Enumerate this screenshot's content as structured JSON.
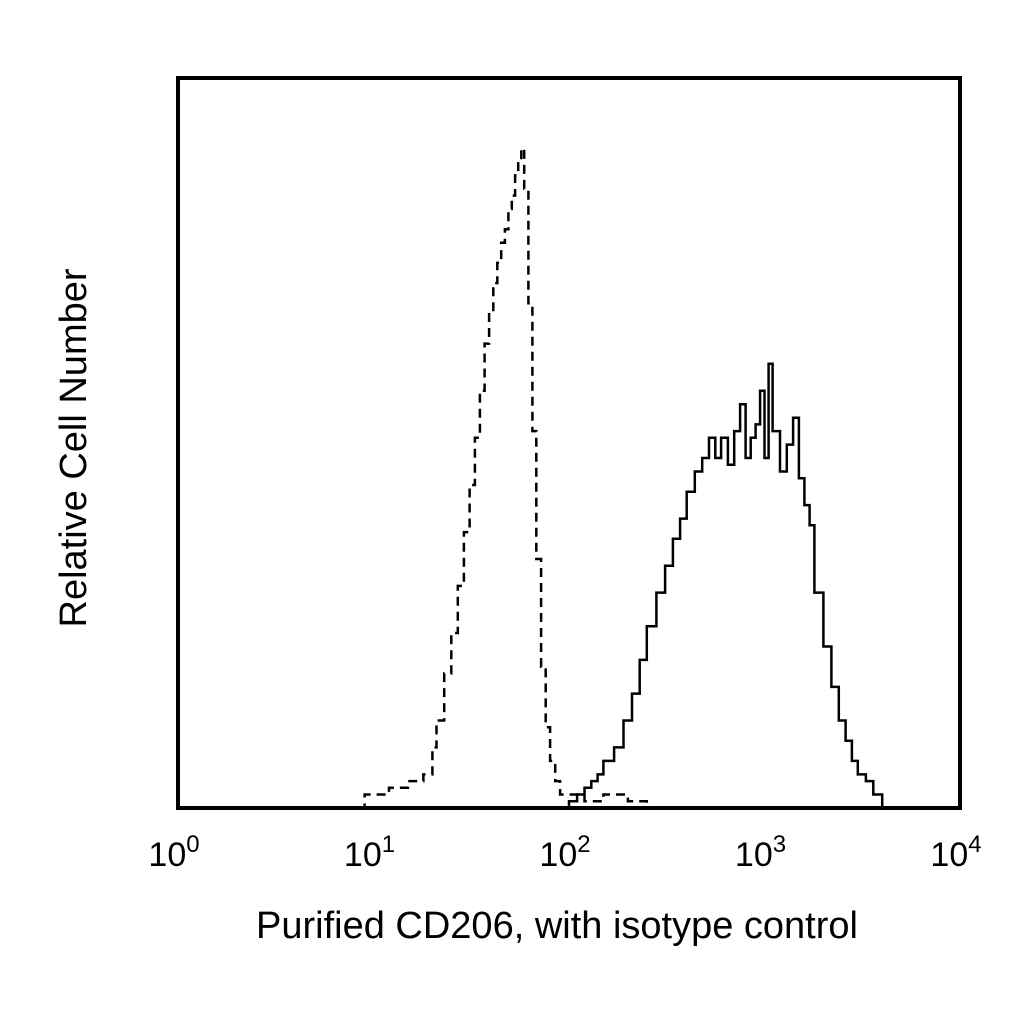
{
  "chart_data": {
    "type": "line",
    "title": "",
    "xlabel": "Purified CD206, with isotype control",
    "ylabel": "Relative Cell Number",
    "x_scale": "log",
    "xlim": [
      1,
      10000
    ],
    "ylim": [
      0,
      1
    ],
    "grid": false,
    "x_ticks": [
      {
        "base": "10",
        "exp": "0"
      },
      {
        "base": "10",
        "exp": "1"
      },
      {
        "base": "10",
        "exp": "2"
      },
      {
        "base": "10",
        "exp": "3"
      },
      {
        "base": "10",
        "exp": "4"
      }
    ],
    "series": [
      {
        "style": "dashed",
        "color": "#000000",
        "x": [
          6,
          9,
          12,
          15,
          18,
          20,
          21,
          23,
          25,
          27,
          29,
          31,
          33,
          35,
          37,
          39,
          41,
          43,
          45,
          47,
          49,
          51,
          53,
          55,
          57,
          59,
          62,
          65,
          68,
          72,
          76,
          80,
          85,
          90,
          100,
          120,
          150,
          200,
          250
        ],
        "y": [
          0.0,
          0.02,
          0.03,
          0.04,
          0.05,
          0.09,
          0.13,
          0.2,
          0.26,
          0.33,
          0.41,
          0.48,
          0.55,
          0.62,
          0.69,
          0.74,
          0.78,
          0.81,
          0.84,
          0.86,
          0.89,
          0.91,
          0.94,
          0.96,
          0.98,
          0.92,
          0.75,
          0.56,
          0.37,
          0.21,
          0.12,
          0.07,
          0.04,
          0.02,
          0.02,
          0.01,
          0.02,
          0.01,
          0.0
        ]
      },
      {
        "style": "solid",
        "color": "#000000",
        "x": [
          90,
          100,
          110,
          120,
          130,
          140,
          150,
          170,
          190,
          210,
          230,
          250,
          280,
          310,
          340,
          370,
          400,
          440,
          480,
          520,
          560,
          600,
          650,
          700,
          750,
          800,
          850,
          900,
          950,
          1000,
          1050,
          1100,
          1200,
          1300,
          1400,
          1500,
          1600,
          1700,
          1800,
          2000,
          2200,
          2400,
          2600,
          2800,
          3000,
          3300,
          3600,
          4000
        ],
        "y": [
          0.0,
          0.01,
          0.02,
          0.03,
          0.04,
          0.05,
          0.07,
          0.09,
          0.13,
          0.17,
          0.22,
          0.27,
          0.32,
          0.36,
          0.4,
          0.43,
          0.47,
          0.5,
          0.52,
          0.55,
          0.52,
          0.55,
          0.51,
          0.56,
          0.6,
          0.52,
          0.55,
          0.57,
          0.62,
          0.52,
          0.66,
          0.56,
          0.5,
          0.54,
          0.58,
          0.49,
          0.45,
          0.42,
          0.32,
          0.24,
          0.18,
          0.13,
          0.1,
          0.07,
          0.05,
          0.04,
          0.02,
          0.0
        ]
      }
    ]
  }
}
